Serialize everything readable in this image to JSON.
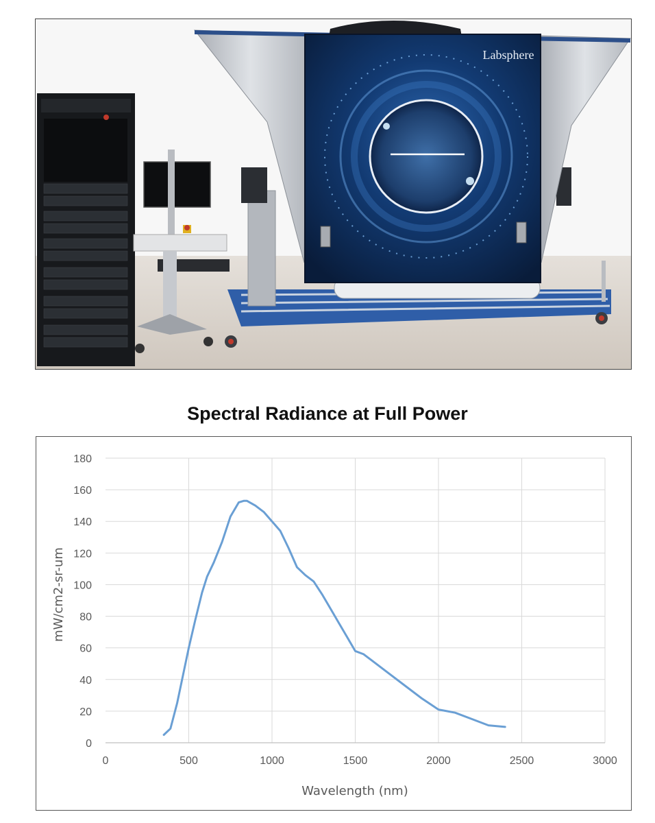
{
  "photo": {
    "logo_text": "Labsphere",
    "colors": {
      "panel": "#0d2a52",
      "glow": "#3a86d6",
      "frame": "#c9ccd2",
      "floor": "#d9d3cc",
      "rack": "#15171a"
    }
  },
  "chart_data": {
    "type": "line",
    "title": "Spectral Radiance at Full Power",
    "xlabel": "Wavelength (nm)",
    "ylabel": "mW/cm2-sr-um",
    "xlim": [
      0,
      3000
    ],
    "ylim": [
      0,
      180
    ],
    "x_ticks": [
      0,
      500,
      1000,
      1500,
      2000,
      2500,
      3000
    ],
    "y_ticks": [
      0,
      20,
      40,
      60,
      80,
      100,
      120,
      140,
      160,
      180
    ],
    "grid": true,
    "line_color": "#6a9fd4",
    "series": [
      {
        "x": [
          350,
          390,
          430,
          470,
          500,
          540,
          580,
          610,
          650,
          700,
          750,
          800,
          830,
          850,
          900,
          950,
          1000,
          1050,
          1100,
          1150,
          1200,
          1250,
          1300,
          1350,
          1400,
          1450,
          1500,
          1550,
          1600,
          1700,
          1800,
          1900,
          2000,
          2050,
          2100,
          2200,
          2300,
          2400
        ],
        "y": [
          5,
          9,
          25,
          45,
          60,
          78,
          95,
          105,
          114,
          127,
          143,
          152,
          153,
          153,
          150,
          146,
          140,
          134,
          123,
          111,
          106,
          102,
          94,
          85,
          76,
          67,
          58,
          56,
          52,
          44,
          36,
          28,
          21,
          20,
          19,
          15,
          11,
          10
        ]
      }
    ]
  }
}
